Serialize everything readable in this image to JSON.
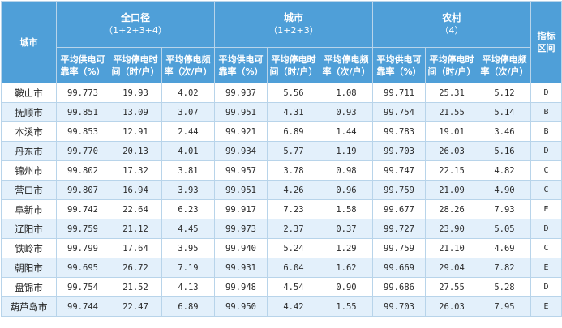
{
  "header": {
    "city": "城市",
    "zone": "指标区间",
    "groups": [
      {
        "title": "全口径",
        "subtitle": "（1+2+3+4）"
      },
      {
        "title": "城市",
        "subtitle": "（1+2+3）"
      },
      {
        "title": "农村",
        "subtitle": "（4）"
      }
    ],
    "metrics": [
      {
        "line1": "平均供电可",
        "line2": "靠率（%）"
      },
      {
        "line1": "平均停电时",
        "line2": "间（时/户）"
      },
      {
        "line1": "平均停电频",
        "line2": "率（次/户）"
      }
    ]
  },
  "rows": [
    {
      "city": "鞍山市",
      "v": [
        "99.773",
        "19.93",
        "4.02",
        "99.937",
        "5.56",
        "1.08",
        "99.711",
        "25.31",
        "5.12"
      ],
      "zone": "D"
    },
    {
      "city": "抚顺市",
      "v": [
        "99.851",
        "13.09",
        "3.07",
        "99.951",
        "4.31",
        "0.93",
        "99.754",
        "21.55",
        "5.14"
      ],
      "zone": "B"
    },
    {
      "city": "本溪市",
      "v": [
        "99.853",
        "12.91",
        "2.44",
        "99.921",
        "6.89",
        "1.44",
        "99.783",
        "19.01",
        "3.46"
      ],
      "zone": "B"
    },
    {
      "city": "丹东市",
      "v": [
        "99.770",
        "20.13",
        "4.01",
        "99.934",
        "5.77",
        "1.19",
        "99.703",
        "26.03",
        "5.16"
      ],
      "zone": "D"
    },
    {
      "city": "锦州市",
      "v": [
        "99.802",
        "17.32",
        "3.81",
        "99.957",
        "3.78",
        "0.98",
        "99.747",
        "22.15",
        "4.82"
      ],
      "zone": "C"
    },
    {
      "city": "营口市",
      "v": [
        "99.807",
        "16.94",
        "3.93",
        "99.951",
        "4.26",
        "0.96",
        "99.759",
        "21.09",
        "4.90"
      ],
      "zone": "C"
    },
    {
      "city": "阜新市",
      "v": [
        "99.742",
        "22.64",
        "6.23",
        "99.917",
        "7.23",
        "1.58",
        "99.677",
        "28.26",
        "7.93"
      ],
      "zone": "E"
    },
    {
      "city": "辽阳市",
      "v": [
        "99.759",
        "21.12",
        "4.45",
        "99.973",
        "2.37",
        "0.37",
        "99.727",
        "23.90",
        "5.05"
      ],
      "zone": "D"
    },
    {
      "city": "铁岭市",
      "v": [
        "99.799",
        "17.64",
        "3.95",
        "99.940",
        "5.24",
        "1.29",
        "99.759",
        "21.10",
        "4.69"
      ],
      "zone": "C"
    },
    {
      "city": "朝阳市",
      "v": [
        "99.695",
        "26.72",
        "7.19",
        "99.931",
        "6.04",
        "1.62",
        "99.669",
        "29.04",
        "7.82"
      ],
      "zone": "E"
    },
    {
      "city": "盘锦市",
      "v": [
        "99.754",
        "21.52",
        "4.13",
        "99.948",
        "4.54",
        "0.90",
        "99.686",
        "27.55",
        "5.28"
      ],
      "zone": "D"
    },
    {
      "city": "葫芦岛市",
      "v": [
        "99.744",
        "22.47",
        "6.89",
        "99.950",
        "4.42",
        "1.55",
        "99.703",
        "26.03",
        "7.95"
      ],
      "zone": "E"
    }
  ]
}
